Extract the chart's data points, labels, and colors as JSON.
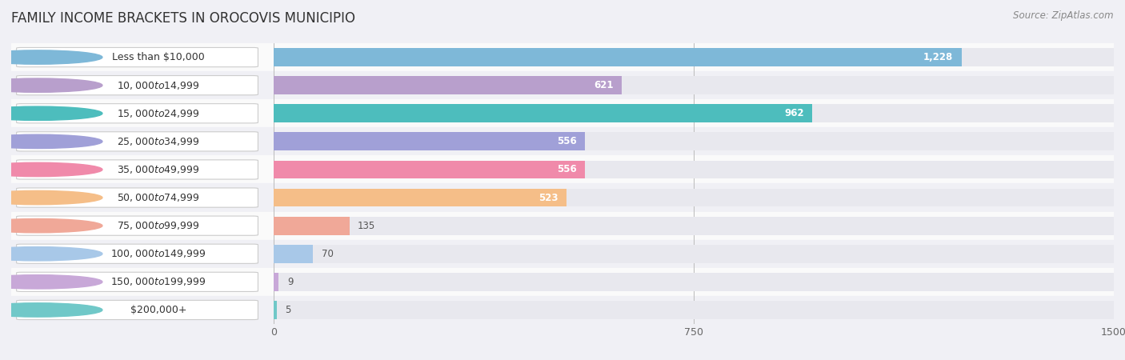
{
  "title": "FAMILY INCOME BRACKETS IN OROCOVIS MUNICIPIO",
  "source": "Source: ZipAtlas.com",
  "categories": [
    "Less than $10,000",
    "$10,000 to $14,999",
    "$15,000 to $24,999",
    "$25,000 to $34,999",
    "$35,000 to $49,999",
    "$50,000 to $74,999",
    "$75,000 to $99,999",
    "$100,000 to $149,999",
    "$150,000 to $199,999",
    "$200,000+"
  ],
  "values": [
    1228,
    621,
    962,
    556,
    556,
    523,
    135,
    70,
    9,
    5
  ],
  "bar_colors": [
    "#7eb8d8",
    "#b89fcc",
    "#4dbdbd",
    "#a0a0d8",
    "#f08aaa",
    "#f5be88",
    "#f0a898",
    "#a8c8e8",
    "#c8a8d8",
    "#70c8c8"
  ],
  "xlim_max": 1500,
  "xticks": [
    0,
    750,
    1500
  ],
  "bg_color": "#f0f0f5",
  "row_colors": [
    "#fafafa",
    "#f0f0f5"
  ],
  "bar_bg_color": "#e8e8ee",
  "title_fontsize": 12,
  "source_fontsize": 8.5,
  "label_fontsize": 9,
  "value_fontsize": 8.5,
  "bar_height": 0.65,
  "label_pill_color": "white",
  "label_pill_edge": "#cccccc",
  "value_inside_color": "white",
  "value_outside_color": "#555555",
  "value_inside_threshold": 200
}
